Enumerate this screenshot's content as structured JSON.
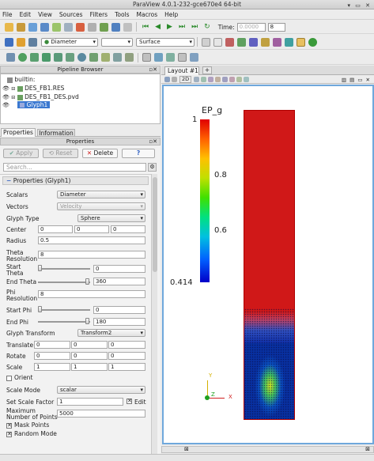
{
  "window": {
    "title": "ParaView 4.0.1-232-gce670e4 64-bit"
  },
  "menu": [
    "File",
    "Edit",
    "View",
    "Sources",
    "Filters",
    "Tools",
    "Macros",
    "Help"
  ],
  "toolbar": {
    "time_label": "Time:",
    "time_value": "0.0000",
    "time_step": "8",
    "color_by": "Diameter",
    "component": "",
    "representation": "Surface"
  },
  "pipeline": {
    "title": "Pipeline Browser",
    "items": [
      {
        "label": "builtin:"
      },
      {
        "label": "DES_FB1.RES"
      },
      {
        "label": "DES_FB1_DES.pvd"
      },
      {
        "label": "Glyph1"
      }
    ]
  },
  "tabs": {
    "properties": "Properties",
    "information": "Information"
  },
  "props": {
    "title": "Properties",
    "apply": "Apply",
    "reset": "Reset",
    "delete": "Delete",
    "help": "?",
    "search_placeholder": "Search...",
    "section": "Properties (Glyph1)",
    "scalars_label": "Scalars",
    "scalars_value": "Diameter",
    "vectors_label": "Vectors",
    "vectors_value": "Velocity",
    "glyph_type_label": "Glyph Type",
    "glyph_type_value": "Sphere",
    "center_label": "Center",
    "center_x": "0",
    "center_y": "0",
    "center_z": "0",
    "radius_label": "Radius",
    "radius_value": "0.5",
    "theta_res_label": "Theta Resolution",
    "theta_res_value": "8",
    "start_theta_label": "Start Theta",
    "start_theta_value": "0",
    "end_theta_label": "End Theta",
    "end_theta_value": "360",
    "phi_res_label": "Phi Resolution",
    "phi_res_value": "8",
    "start_phi_label": "Start Phi",
    "start_phi_value": "0",
    "end_phi_label": "End Phi",
    "end_phi_value": "180",
    "glyph_transform_label": "Glyph Transform",
    "glyph_transform_value": "Transform2",
    "translate_label": "Translate",
    "translate_x": "0",
    "translate_y": "0",
    "translate_z": "0",
    "rotate_label": "Rotate",
    "rotate_x": "0",
    "rotate_y": "0",
    "rotate_z": "0",
    "scale_label": "Scale",
    "scale_x": "1",
    "scale_y": "1",
    "scale_z": "1",
    "orient_label": "Orient",
    "scale_mode_label": "Scale Mode",
    "scale_mode_value": "scalar",
    "scale_factor_label": "Set Scale Factor",
    "scale_factor_value": "1",
    "edit_label": "Edit",
    "max_points_label": "Maximum Number of Points",
    "max_points_value": "5000",
    "mask_points_label": "Mask Points",
    "random_mode_label": "Random Mode"
  },
  "view": {
    "tab_label": "Layout #1",
    "mode_2d": "2D",
    "colorbar_title": "EP_g",
    "ticks": [
      "1",
      "0.8",
      "0.6",
      "0.414"
    ],
    "axis_x": "X",
    "axis_y": "Y",
    "axis_z": "Z"
  }
}
